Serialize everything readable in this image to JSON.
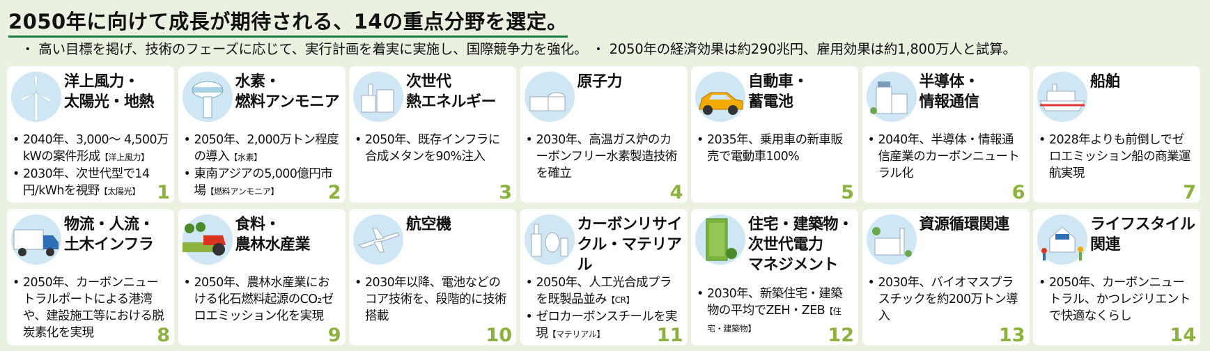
{
  "header": {
    "title": "2050年に向けて成長が期待される、14の重点分野を選定。",
    "subtitle": "・ 高い目標を掲げ、技術のフェーズに応じて、実行計画を着実に実施し、国際競争力を強化。 ・ 2050年の経済効果は約290兆円、雇用効果は約1,800万人と試算。"
  },
  "cards": [
    {
      "title_lines": [
        "洋上風力・",
        "太陽光・地熱"
      ],
      "icon": "wind-turbine-icon",
      "number": "1",
      "bullets": [
        {
          "text": "2040年、3,000～ 4,500万kWの案件形成",
          "tag": "【洋上風力】"
        },
        {
          "text": "2030年、次世代型で14円/kWhを視野",
          "tag": "【太陽光】"
        }
      ]
    },
    {
      "title_lines": [
        "水素・",
        "燃料アンモニア"
      ],
      "icon": "hydrogen-tank-icon",
      "number": "2",
      "bullets": [
        {
          "text": "2050年、2,000万トン程度の導入",
          "tag": "【水素】"
        },
        {
          "text": "東南アジアの5,000億円市場",
          "tag": "【燃料アンモニア】"
        }
      ]
    },
    {
      "title_lines": [
        "次世代",
        "熱エネルギー"
      ],
      "icon": "factory-icon",
      "number": "3",
      "bullets": [
        {
          "text": "2050年、既存インフラに合成メタンを90%注入",
          "tag": ""
        }
      ]
    },
    {
      "title_lines": [
        "原子力"
      ],
      "icon": "nuclear-plant-icon",
      "number": "4",
      "bullets": [
        {
          "text": "2030年、高温ガス炉のカーボンフリー水素製造技術を確立",
          "tag": ""
        }
      ]
    },
    {
      "title_lines": [
        "自動車・",
        "蓄電池"
      ],
      "icon": "car-icon",
      "number": "5",
      "bullets": [
        {
          "text": "2035年、乗用車の新車販売で電動車100%",
          "tag": ""
        }
      ]
    },
    {
      "title_lines": [
        "半導体・",
        "情報通信"
      ],
      "icon": "building-icon",
      "number": "6",
      "bullets": [
        {
          "text": "2040年、半導体・情報通信産業のカーボンニュートラル化",
          "tag": ""
        }
      ]
    },
    {
      "title_lines": [
        "船舶"
      ],
      "icon": "ship-icon",
      "number": "7",
      "bullets": [
        {
          "text": "2028年よりも前倒しでゼロエミッション船の商業運航実現",
          "tag": ""
        }
      ]
    },
    {
      "title_lines": [
        "物流・人流・",
        "土木インフラ"
      ],
      "icon": "truck-icon",
      "number": "8",
      "bullets": [
        {
          "text": "2050年、カーボンニュートラルポートによる港湾や、建設施工等における脱炭素化を実現",
          "tag": ""
        }
      ]
    },
    {
      "title_lines": [
        "食料・",
        "農林水産業"
      ],
      "icon": "tractor-icon",
      "number": "9",
      "bullets": [
        {
          "text": "2050年、農林水産業における化石燃料起源のCO₂ゼロエミッション化を実現",
          "tag": ""
        }
      ]
    },
    {
      "title_lines": [
        "航空機"
      ],
      "icon": "airplane-icon",
      "number": "10",
      "bullets": [
        {
          "text": "2030年以降、電池などのコア技術を、段階的に技術搭載",
          "tag": ""
        }
      ]
    },
    {
      "title_lines": [
        "カーボンリサイ",
        "クル・マテリアル"
      ],
      "icon": "plant-facility-icon",
      "number": "11",
      "bullets": [
        {
          "text": "2050年、人工光合成プラを既製品並み",
          "tag": "【CR】"
        },
        {
          "text": "ゼロカーボンスチールを実現",
          "tag": "【マテリアル】"
        }
      ]
    },
    {
      "title_lines": [
        "住宅・建築物・",
        "次世代電力",
        "マネジメント"
      ],
      "icon": "green-building-icon",
      "number": "12",
      "bullets": [
        {
          "text": "2030年、新築住宅・建築物の平均でZEH・ZEB",
          "tag": "【住宅・建築物】"
        }
      ]
    },
    {
      "title_lines": [
        "資源循環関連"
      ],
      "icon": "recycling-plant-icon",
      "number": "13",
      "bullets": [
        {
          "text": "2030年、バイオマスプラスチックを約200万トン導入",
          "tag": ""
        }
      ]
    },
    {
      "title_lines": [
        "ライフスタイル",
        "関連"
      ],
      "icon": "family-house-icon",
      "number": "14",
      "bullets": [
        {
          "text": "2050年、カーボンニュートラル、かつレジリエントで快適なくらし",
          "tag": ""
        }
      ]
    }
  ]
}
